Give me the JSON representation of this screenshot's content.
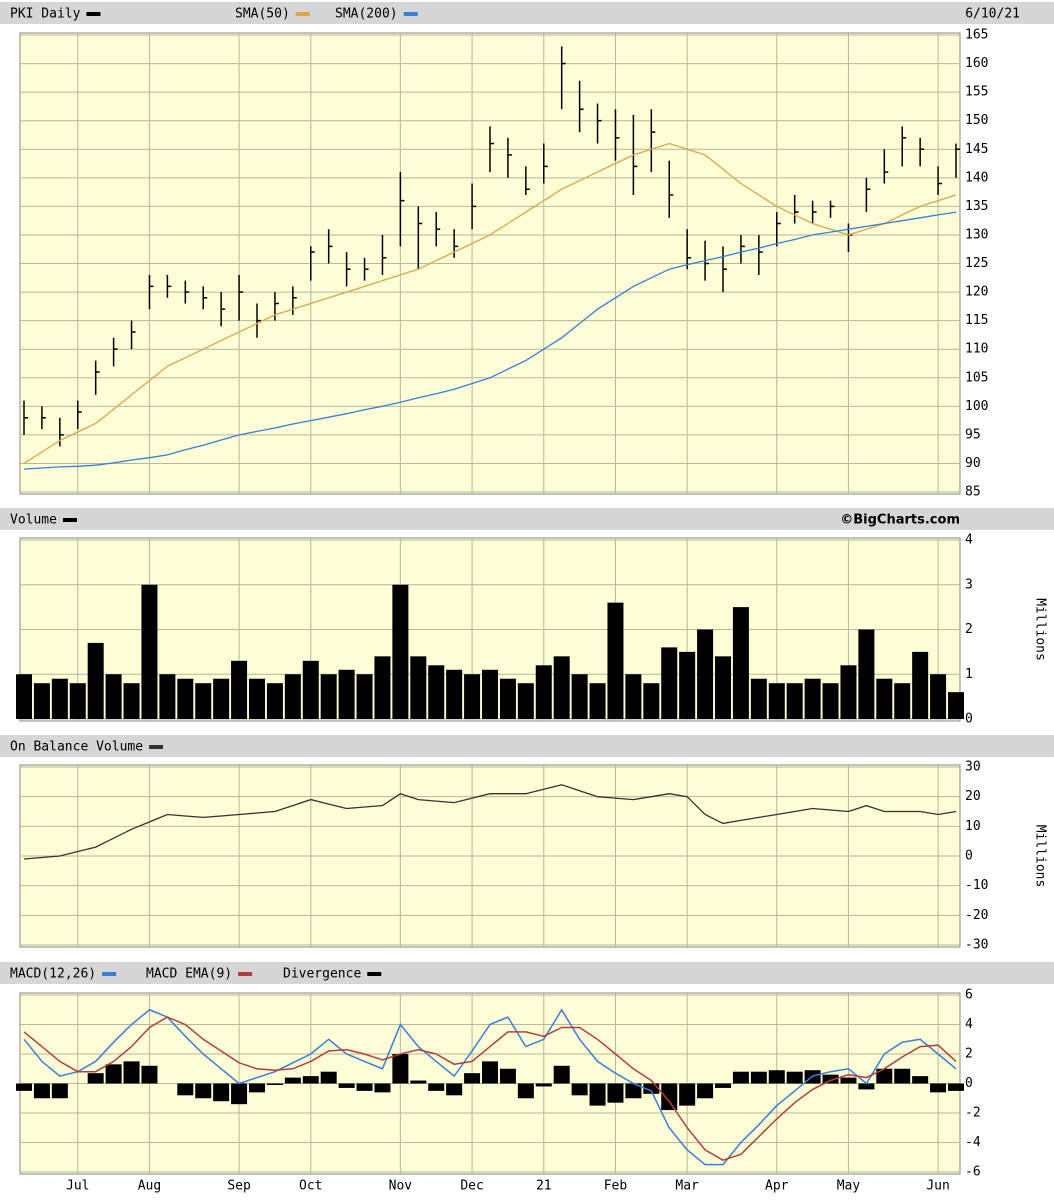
{
  "chart_data": [
    {
      "type": "ohlc",
      "date_label": "6/10/21",
      "ylim": [
        85,
        165
      ],
      "yticks": [
        85,
        90,
        95,
        100,
        105,
        110,
        115,
        120,
        125,
        130,
        135,
        140,
        145,
        150,
        155,
        160,
        165
      ],
      "grid": true,
      "series": [
        {
          "name": "PKI Daily",
          "color": "#000000",
          "high": [
            101,
            100,
            98,
            101,
            108,
            112,
            115,
            123,
            123,
            122,
            121,
            120,
            123,
            118,
            120,
            121,
            128,
            131,
            127,
            126,
            130,
            141,
            135,
            134,
            131,
            139,
            149,
            147,
            142,
            146,
            163,
            157,
            153,
            152,
            151,
            152,
            143,
            131,
            129,
            128,
            130,
            130,
            134,
            137,
            136,
            136,
            132,
            140,
            145,
            149,
            147,
            142,
            146
          ],
          "low": [
            95,
            96,
            93,
            96,
            102,
            107,
            110,
            117,
            119,
            118,
            117,
            114,
            115,
            112,
            115,
            116,
            122,
            125,
            121,
            122,
            123,
            128,
            124,
            128,
            126,
            131,
            141,
            140,
            137,
            139,
            152,
            148,
            146,
            143,
            137,
            141,
            133,
            124,
            122,
            120,
            125,
            123,
            128,
            132,
            132,
            133,
            127,
            134,
            139,
            142,
            142,
            137,
            140
          ],
          "close": [
            98,
            98,
            95,
            99,
            106,
            110,
            113,
            121,
            121,
            120,
            119,
            117,
            120,
            115,
            118,
            119,
            127,
            128,
            124,
            124,
            126,
            136,
            132,
            131,
            128,
            135,
            146,
            144,
            138,
            142,
            160,
            152,
            150,
            147,
            142,
            148,
            137,
            126,
            125,
            124,
            128,
            127,
            132,
            134,
            134,
            135,
            130,
            138,
            141,
            147,
            145,
            139,
            145
          ]
        },
        {
          "name": "SMA(50)",
          "color": "#d9a74a",
          "values": [
            90,
            92,
            94,
            95.5,
            97,
            99.5,
            102,
            104.5,
            107,
            108.5,
            110,
            111.5,
            113,
            114.5,
            116,
            117,
            118,
            119,
            120,
            121,
            122,
            123,
            124,
            125.5,
            127,
            128.5,
            130,
            132,
            134,
            136,
            138,
            139.5,
            141,
            142.5,
            144,
            145,
            146,
            145,
            144,
            141.5,
            139,
            137,
            135,
            133.5,
            132,
            131,
            130,
            131,
            132,
            133.5,
            135,
            136,
            137
          ]
        },
        {
          "name": "SMA(200)",
          "color": "#3a7fd5",
          "values": [
            89,
            89.2,
            89.4,
            89.5,
            89.7,
            90.1,
            90.6,
            91,
            91.5,
            92.4,
            93.2,
            94.1,
            95,
            95.6,
            96.2,
            96.9,
            97.5,
            98.1,
            98.7,
            99.4,
            100,
            100.7,
            101.5,
            102.2,
            103,
            104,
            105,
            106.5,
            108,
            110,
            112,
            114.5,
            117,
            119,
            121,
            122.5,
            124,
            124.8,
            125.5,
            126.2,
            127,
            127.7,
            128.5,
            129.2,
            130,
            130.5,
            131,
            131.5,
            132,
            132.5,
            133,
            133.5,
            134
          ]
        }
      ]
    },
    {
      "type": "volume",
      "credit": "©BigCharts.com",
      "y_label": "Millions",
      "ylim": [
        0,
        4
      ],
      "yticks": [
        0,
        1,
        2,
        3,
        4
      ],
      "grid": true,
      "series": [
        {
          "name": "Volume",
          "color": "#000000",
          "values": [
            1.0,
            0.8,
            0.9,
            0.8,
            1.7,
            1.0,
            0.8,
            3.0,
            1.0,
            0.9,
            0.8,
            0.9,
            1.3,
            0.9,
            0.8,
            1.0,
            1.3,
            1.0,
            1.1,
            1.0,
            1.4,
            3.0,
            1.4,
            1.2,
            1.1,
            1.0,
            1.1,
            0.9,
            0.8,
            1.2,
            1.4,
            1.0,
            0.8,
            2.6,
            1.0,
            0.8,
            1.6,
            1.5,
            2.0,
            1.4,
            2.5,
            0.9,
            0.8,
            0.8,
            0.9,
            0.8,
            1.2,
            2.0,
            0.9,
            0.8,
            1.5,
            1.0,
            0.6
          ]
        }
      ]
    },
    {
      "type": "line",
      "y_label": "Millions",
      "ylim": [
        -30,
        30
      ],
      "yticks": [
        -30,
        -20,
        -10,
        0,
        10,
        20,
        30
      ],
      "grid": true,
      "series": [
        {
          "name": "On Balance Volume",
          "color": "#333333",
          "values": [
            -1,
            -0.5,
            0,
            1.5,
            3,
            6,
            9,
            11.5,
            14,
            13.5,
            13,
            13.5,
            14,
            14.5,
            15,
            17,
            19,
            17.5,
            16,
            16.5,
            17,
            21,
            19,
            18.5,
            18,
            19.5,
            21,
            21,
            21,
            22.5,
            24,
            22,
            20,
            19.5,
            19,
            20,
            21,
            20,
            14,
            11,
            12,
            13,
            14,
            15,
            16,
            15.5,
            15,
            17,
            15,
            15,
            15,
            14,
            15
          ]
        }
      ]
    },
    {
      "type": "macd",
      "categories": [
        null,
        null,
        null,
        "Jul",
        null,
        null,
        null,
        "Aug",
        null,
        null,
        null,
        null,
        "Sep",
        null,
        null,
        null,
        "Oct",
        null,
        null,
        null,
        null,
        "Nov",
        null,
        null,
        null,
        "Dec",
        null,
        null,
        null,
        "21",
        null,
        null,
        null,
        "Feb",
        null,
        null,
        null,
        "Mar",
        null,
        null,
        null,
        null,
        "Apr",
        null,
        null,
        null,
        "May",
        null,
        null,
        null,
        null,
        "Jun",
        null
      ],
      "ylim": [
        -6,
        6
      ],
      "yticks": [
        -6,
        -4,
        -2,
        0,
        2,
        4,
        6
      ],
      "grid": true,
      "series": [
        {
          "name": "MACD(12,26)",
          "color": "#3a7fd5",
          "values": [
            3,
            1.5,
            0.5,
            0.8,
            1.5,
            2.8,
            4,
            5,
            4.5,
            3.2,
            2,
            1,
            0,
            0.4,
            0.8,
            1.4,
            2,
            3,
            2,
            1.5,
            1,
            4,
            2.5,
            1.5,
            0.5,
            2.2,
            4,
            4.5,
            2.5,
            3,
            5,
            3,
            1.5,
            0.7,
            0,
            -0.5,
            -3,
            -4.5,
            -5.5,
            -5.5,
            -4,
            -2.8,
            -1.5,
            -0.5,
            0.5,
            0.8,
            1,
            0,
            2,
            2.8,
            3,
            2,
            1
          ]
        },
        {
          "name": "MACD EMA(9)",
          "color": "#b04040",
          "values": [
            3.5,
            2.5,
            1.5,
            0.8,
            0.8,
            1.5,
            2.5,
            3.8,
            4.5,
            4,
            3,
            2.2,
            1.4,
            1,
            0.9,
            1,
            1.5,
            2.2,
            2.3,
            2,
            1.6,
            2,
            2.3,
            2,
            1.3,
            1.5,
            2.5,
            3.5,
            3.5,
            3.2,
            3.8,
            3.8,
            3,
            2,
            1,
            0.2,
            -1.2,
            -3,
            -4.5,
            -5.2,
            -4.8,
            -3.6,
            -2.4,
            -1.3,
            -0.4,
            0.2,
            0.6,
            0.4,
            1,
            1.8,
            2.5,
            2.6,
            1.5
          ]
        },
        {
          "name": "Divergence",
          "color": "#000000",
          "values": [
            -0.5,
            -1,
            -1,
            0,
            0.7,
            1.3,
            1.5,
            1.2,
            0,
            -0.8,
            -1,
            -1.2,
            -1.4,
            -0.6,
            -0.1,
            0.4,
            0.5,
            0.8,
            -0.3,
            -0.5,
            -0.6,
            2,
            0.2,
            -0.5,
            -0.8,
            0.7,
            1.5,
            1,
            -1,
            -0.2,
            1.2,
            -0.8,
            -1.5,
            -1.3,
            -1,
            -0.7,
            -1.8,
            -1.5,
            -1,
            -0.3,
            0.8,
            0.8,
            0.9,
            0.8,
            0.9,
            0.6,
            0.4,
            -0.4,
            1,
            1,
            0.5,
            -0.6,
            -0.5
          ]
        }
      ]
    }
  ]
}
